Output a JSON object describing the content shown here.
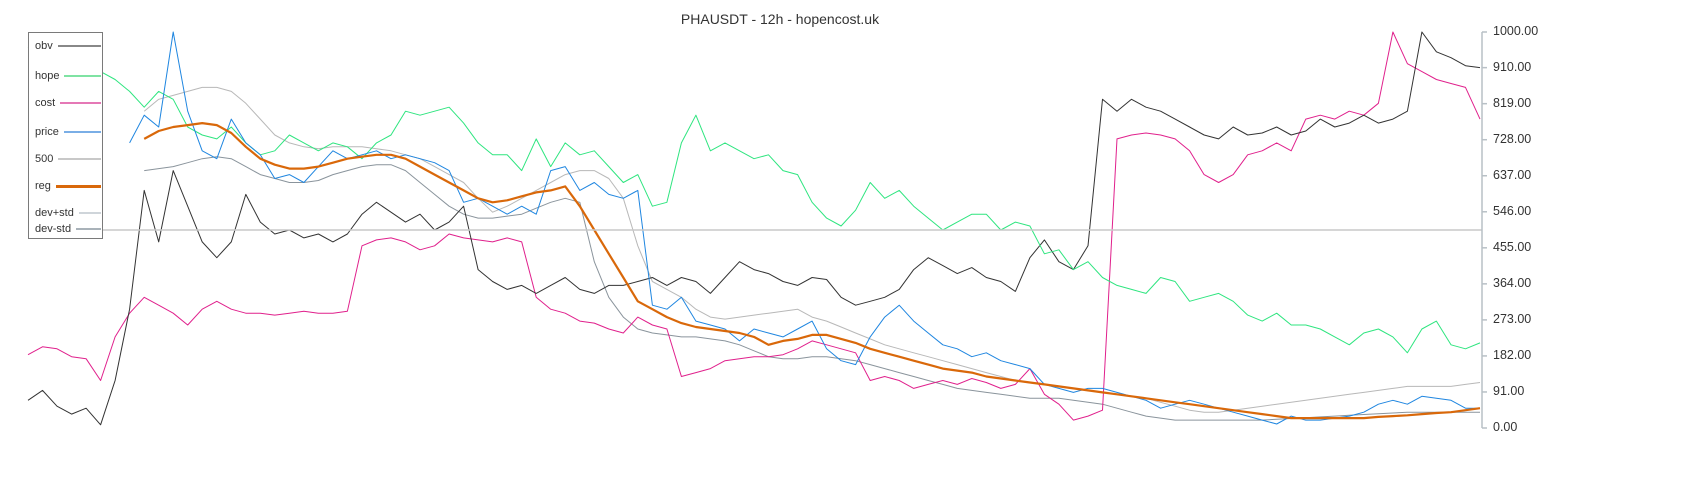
{
  "chart_data": {
    "type": "line",
    "title": "PHAUSDT - 12h - hopencost.uk",
    "xlabel": "",
    "ylabel": "",
    "ylim": [
      0,
      1000
    ],
    "yticks": [
      "1000.00",
      "910.00",
      "819.00",
      "728.00",
      "637.00",
      "546.00",
      "455.00",
      "364.00",
      "273.00",
      "182.00",
      "91.00",
      "0.00"
    ],
    "ytick_values": [
      1000,
      910,
      819,
      728,
      637,
      546,
      455,
      364,
      273,
      182,
      91,
      0
    ],
    "y_axis_position": "right",
    "grid": false,
    "reference_line": {
      "value": 500,
      "label": "500",
      "color": "#c8c8c8"
    },
    "legend_position": "top-left",
    "legend": [
      "obv",
      "hope",
      "cost",
      "price",
      "500",
      "reg",
      "dev+std",
      "dev-std"
    ],
    "x_count": 101,
    "series": [
      {
        "name": "obv",
        "color": "#333333",
        "width": 1,
        "values": [
          70,
          95,
          55,
          35,
          50,
          8,
          120,
          300,
          600,
          470,
          650,
          560,
          470,
          430,
          470,
          590,
          520,
          490,
          500,
          480,
          490,
          470,
          490,
          540,
          570,
          545,
          520,
          540,
          500,
          520,
          560,
          400,
          370,
          350,
          360,
          340,
          360,
          380,
          350,
          340,
          360,
          360,
          370,
          380,
          360,
          380,
          370,
          340,
          380,
          420,
          400,
          390,
          370,
          360,
          380,
          375,
          330,
          310,
          320,
          330,
          350,
          400,
          430,
          410,
          390,
          405,
          380,
          370,
          345,
          430,
          475,
          420,
          400,
          460,
          830,
          800,
          830,
          810,
          800,
          780,
          760,
          740,
          730,
          760,
          740,
          745,
          760,
          740,
          750,
          780,
          760,
          770,
          790,
          770,
          780,
          800,
          1000,
          950,
          935,
          915,
          910
        ]
      },
      {
        "name": "hope",
        "color": "#2ee57f",
        "width": 1,
        "values": [
          960,
          975,
          980,
          990,
          940,
          900,
          880,
          850,
          810,
          850,
          830,
          760,
          740,
          730,
          760,
          720,
          690,
          700,
          740,
          720,
          700,
          720,
          710,
          680,
          720,
          740,
          800,
          790,
          800,
          810,
          770,
          720,
          690,
          690,
          650,
          730,
          660,
          720,
          690,
          700,
          660,
          620,
          640,
          560,
          570,
          720,
          790,
          700,
          720,
          700,
          680,
          690,
          650,
          640,
          570,
          530,
          510,
          550,
          620,
          580,
          600,
          560,
          530,
          500,
          520,
          540,
          540,
          500,
          520,
          510,
          440,
          450,
          400,
          420,
          380,
          360,
          350,
          340,
          380,
          370,
          320,
          330,
          340,
          320,
          285,
          270,
          290,
          260,
          260,
          250,
          230,
          210,
          240,
          250,
          230,
          190,
          250,
          270,
          210,
          200,
          215
        ]
      },
      {
        "name": "cost",
        "color": "#e0208c",
        "width": 1,
        "values": [
          185,
          205,
          200,
          180,
          175,
          120,
          230,
          290,
          330,
          310,
          290,
          260,
          300,
          320,
          300,
          290,
          290,
          285,
          290,
          295,
          290,
          290,
          295,
          460,
          475,
          480,
          470,
          450,
          460,
          490,
          480,
          475,
          470,
          480,
          470,
          330,
          300,
          290,
          270,
          265,
          250,
          240,
          280,
          260,
          250,
          130,
          140,
          150,
          170,
          175,
          180,
          180,
          185,
          200,
          220,
          210,
          200,
          190,
          120,
          130,
          120,
          100,
          110,
          120,
          110,
          125,
          115,
          100,
          110,
          150,
          85,
          60,
          20,
          30,
          45,
          730,
          740,
          745,
          740,
          730,
          700,
          640,
          620,
          640,
          690,
          700,
          720,
          700,
          780,
          790,
          780,
          800,
          790,
          820,
          1000,
          920,
          900,
          880,
          870,
          860,
          780
        ]
      },
      {
        "name": "price",
        "color": "#1f86e0",
        "width": 1,
        "values": [
          null,
          null,
          null,
          null,
          null,
          null,
          null,
          720,
          790,
          760,
          1000,
          800,
          700,
          680,
          780,
          720,
          690,
          630,
          640,
          620,
          660,
          700,
          680,
          690,
          700,
          680,
          690,
          680,
          670,
          650,
          570,
          580,
          560,
          540,
          560,
          540,
          650,
          660,
          600,
          620,
          590,
          580,
          600,
          310,
          300,
          330,
          270,
          260,
          250,
          220,
          250,
          240,
          230,
          250,
          270,
          200,
          170,
          160,
          230,
          280,
          310,
          270,
          240,
          210,
          200,
          180,
          190,
          170,
          160,
          150,
          110,
          100,
          90,
          100,
          100,
          90,
          80,
          70,
          50,
          60,
          70,
          60,
          50,
          40,
          30,
          20,
          10,
          30,
          20,
          20,
          25,
          30,
          40,
          60,
          70,
          60,
          80,
          75,
          70,
          50,
          50
        ]
      },
      {
        "name": "reg",
        "color": "#d9680a",
        "width": 2.2,
        "values": [
          null,
          null,
          null,
          null,
          null,
          null,
          null,
          null,
          730,
          750,
          760,
          765,
          770,
          765,
          745,
          710,
          680,
          665,
          655,
          655,
          660,
          670,
          680,
          685,
          690,
          690,
          680,
          660,
          640,
          620,
          600,
          580,
          570,
          575,
          585,
          595,
          600,
          610,
          560,
          500,
          440,
          380,
          320,
          300,
          280,
          265,
          255,
          250,
          245,
          240,
          230,
          210,
          220,
          225,
          235,
          235,
          225,
          215,
          200,
          190,
          180,
          170,
          160,
          150,
          145,
          140,
          130,
          125,
          120,
          115,
          110,
          105,
          100,
          95,
          90,
          85,
          80,
          75,
          70,
          65,
          60,
          55,
          50,
          45,
          40,
          35,
          30,
          25,
          25,
          25,
          25,
          25,
          25,
          28,
          30,
          32,
          35,
          38,
          40,
          45,
          50
        ]
      },
      {
        "name": "dev+std",
        "color": "#b8b8b8",
        "width": 1,
        "values": [
          null,
          null,
          null,
          null,
          null,
          null,
          null,
          null,
          800,
          830,
          840,
          850,
          860,
          860,
          850,
          820,
          780,
          740,
          720,
          710,
          705,
          710,
          710,
          710,
          705,
          700,
          690,
          680,
          660,
          640,
          620,
          580,
          545,
          560,
          580,
          600,
          620,
          640,
          650,
          650,
          630,
          580,
          460,
          370,
          350,
          330,
          300,
          280,
          275,
          280,
          285,
          290,
          295,
          300,
          280,
          270,
          255,
          240,
          225,
          210,
          200,
          190,
          180,
          170,
          160,
          150,
          140,
          130,
          120,
          115,
          110,
          105,
          100,
          95,
          90,
          85,
          80,
          75,
          65,
          55,
          45,
          40,
          40,
          45,
          50,
          55,
          60,
          65,
          70,
          75,
          80,
          85,
          90,
          95,
          100,
          105,
          105,
          105,
          105,
          110,
          115
        ]
      },
      {
        "name": "dev-std",
        "color": "#8a949c",
        "width": 1,
        "values": [
          null,
          null,
          null,
          null,
          null,
          null,
          null,
          null,
          650,
          655,
          660,
          670,
          680,
          685,
          680,
          660,
          640,
          630,
          620,
          620,
          625,
          640,
          650,
          660,
          665,
          665,
          650,
          620,
          590,
          560,
          540,
          530,
          530,
          535,
          540,
          555,
          570,
          580,
          570,
          420,
          330,
          280,
          250,
          240,
          235,
          230,
          230,
          225,
          220,
          210,
          195,
          180,
          175,
          175,
          180,
          180,
          175,
          170,
          160,
          150,
          140,
          130,
          120,
          110,
          100,
          95,
          90,
          85,
          80,
          75,
          75,
          75,
          70,
          65,
          60,
          50,
          40,
          30,
          25,
          20,
          20,
          20,
          20,
          20,
          20,
          20,
          22,
          24,
          26,
          28,
          30,
          32,
          34,
          36,
          38,
          40,
          40,
          40,
          40,
          40,
          40
        ]
      }
    ]
  },
  "legend_items": [
    {
      "label": "obv",
      "color": "#888888"
    },
    {
      "label": "hope",
      "color": "#7fe3a3"
    },
    {
      "label": "cost",
      "color": "#e578b6"
    },
    {
      "label": "price",
      "color": "#7aaee6"
    },
    {
      "label": "500",
      "color": "#c8c8c8"
    },
    {
      "label": "reg",
      "color": "#d9680a"
    },
    {
      "label": "dev+std",
      "color": "#cfd5da"
    },
    {
      "label": "dev-std",
      "color": "#a9b2b9"
    }
  ]
}
